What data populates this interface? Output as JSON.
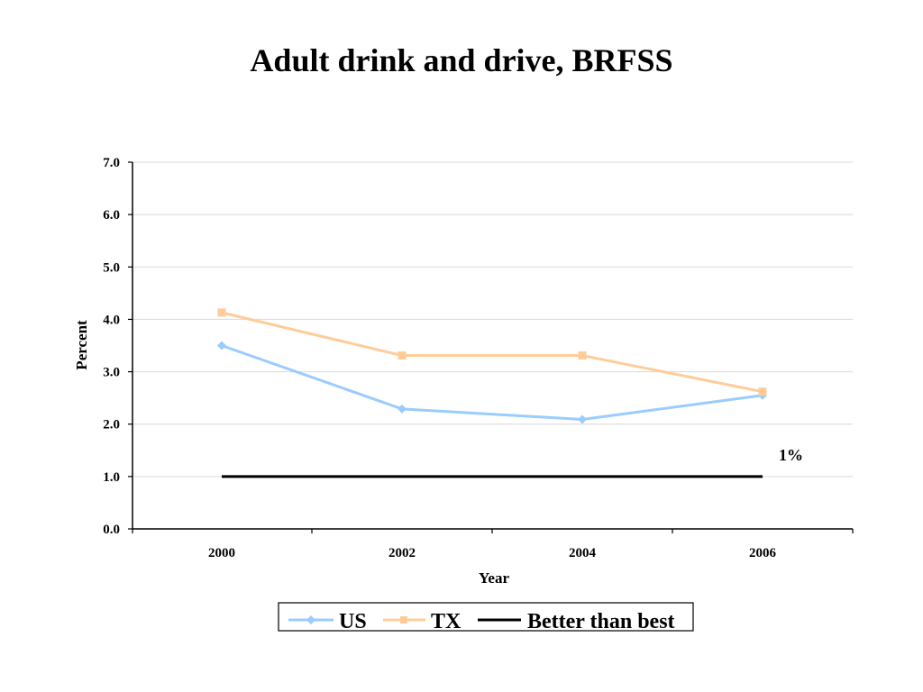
{
  "chart_data": {
    "type": "line",
    "title": "Adult drink and drive, BRFSS",
    "xlabel": "Year",
    "ylabel": "Percent",
    "categories": [
      "2000",
      "2002",
      "2004",
      "2006"
    ],
    "ylim": [
      0,
      7
    ],
    "yticks": [
      "0.0",
      "1.0",
      "2.0",
      "3.0",
      "4.0",
      "5.0",
      "6.0",
      "7.0"
    ],
    "grid": true,
    "legend_position": "bottom",
    "series": [
      {
        "name": "US",
        "values": [
          3.5,
          2.29,
          2.09,
          2.55
        ],
        "color": "#99ccff",
        "marker": "diamond"
      },
      {
        "name": "TX",
        "values": [
          4.13,
          3.31,
          3.31,
          2.62
        ],
        "color": "#ffcc99",
        "marker": "square"
      },
      {
        "name": "Better than best",
        "values": [
          1.0,
          1.0,
          1.0,
          1.0
        ],
        "color": "#000000",
        "marker": "none"
      }
    ],
    "annotations": [
      {
        "text": "1%",
        "series": "Better than best"
      }
    ]
  }
}
